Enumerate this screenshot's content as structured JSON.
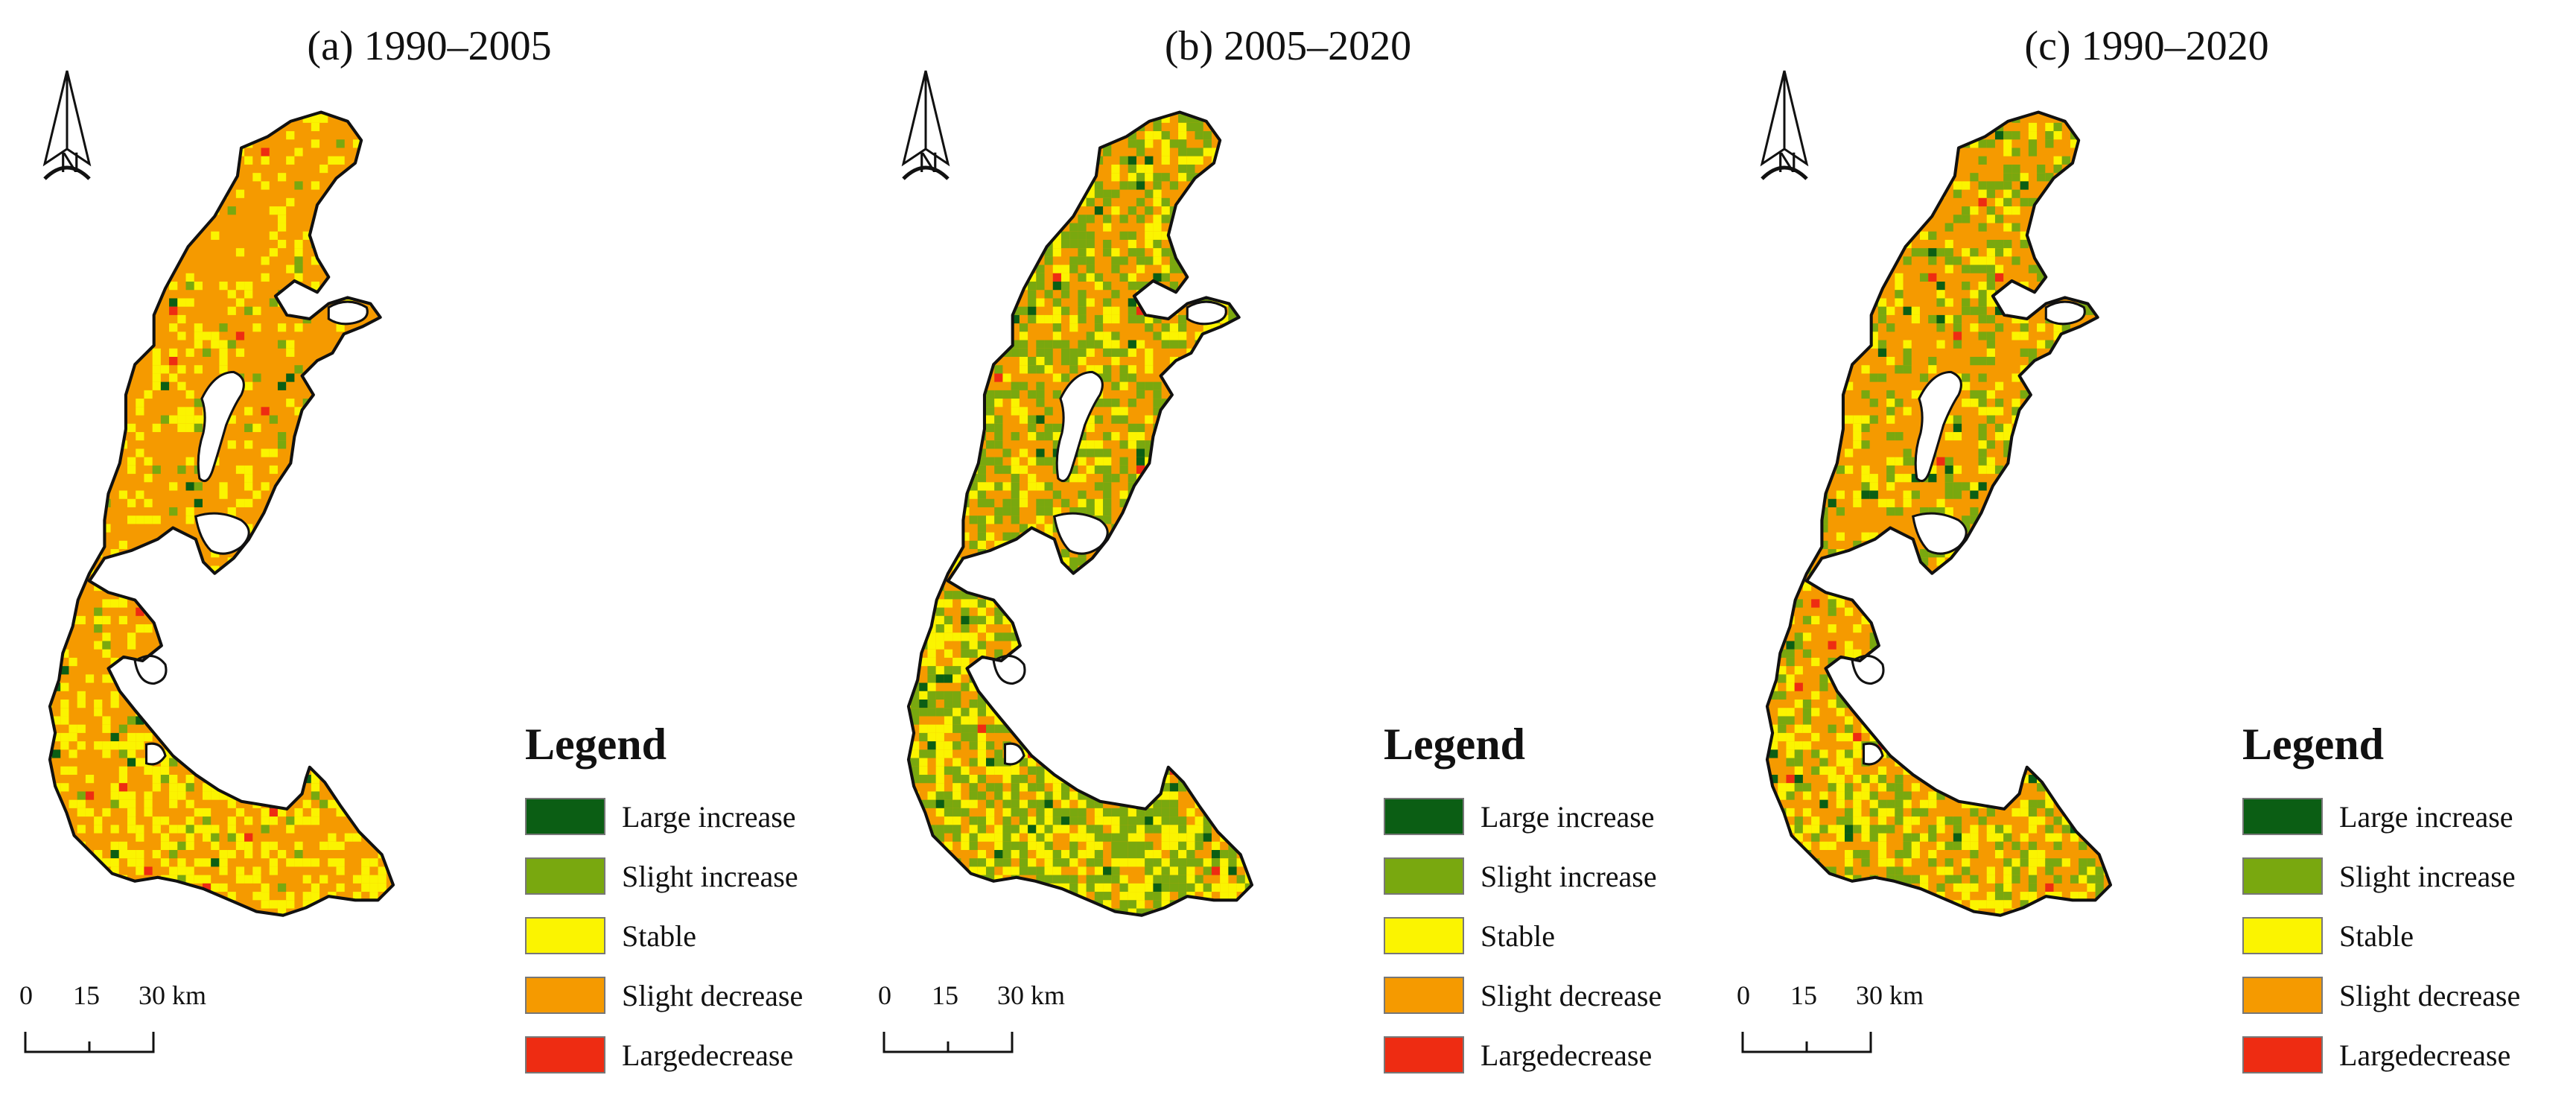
{
  "panels": [
    {
      "title": "(a) 1990–2005",
      "dominant": "#f59a00",
      "mix": {
        "green": 0.03,
        "dark": 0.005,
        "yellow": 0.16,
        "red": 0.008
      }
    },
    {
      "title": "(b) 2005–2020",
      "dominant": "#f59a00",
      "mix": {
        "green": 0.34,
        "dark": 0.02,
        "yellow": 0.2,
        "red": 0.005
      }
    },
    {
      "title": "(c) 1990–2020",
      "dominant": "#f59a00",
      "mix": {
        "green": 0.18,
        "dark": 0.015,
        "yellow": 0.15,
        "red": 0.01
      }
    }
  ],
  "north_label": "N",
  "legend": {
    "title": "Legend",
    "items": [
      {
        "label": "Large increase",
        "color": "#0b5e14"
      },
      {
        "label": "Slight increase",
        "color": "#79a80f"
      },
      {
        "label": "Stable",
        "color": "#fbf400"
      },
      {
        "label": "Slight decrease",
        "color": "#f59a00"
      },
      {
        "label": "Largedecrease",
        "color": "#ee2c12"
      }
    ]
  },
  "scale_bar": {
    "ticks": [
      "0",
      "15",
      "30 km"
    ]
  }
}
